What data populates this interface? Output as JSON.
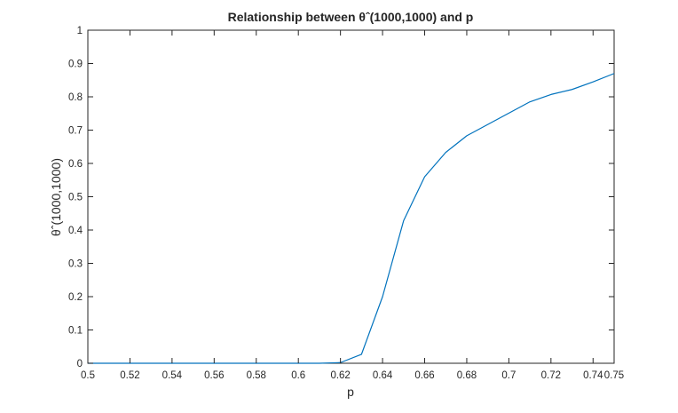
{
  "chart_data": {
    "type": "line",
    "title": "Relationship between θˆ(1000,1000) and p",
    "xlabel": "p",
    "ylabel": "θˆ(1000,1000)",
    "xlim": [
      0.5,
      0.75
    ],
    "ylim": [
      0,
      1
    ],
    "xticks": [
      0.5,
      0.52,
      0.54,
      0.56,
      0.58,
      0.6,
      0.62,
      0.64,
      0.66,
      0.68,
      0.7,
      0.72,
      0.74,
      0.75
    ],
    "xtick_labels": [
      "0.5",
      "0.52",
      "0.54",
      "0.56",
      "0.58",
      "0.6",
      "0.62",
      "0.64",
      "0.66",
      "0.68",
      "0.7",
      "0.72",
      "0.74",
      "0.75"
    ],
    "yticks": [
      0,
      0.1,
      0.2,
      0.3,
      0.4,
      0.5,
      0.6,
      0.7,
      0.8,
      0.9,
      1
    ],
    "ytick_labels": [
      "0",
      "0.1",
      "0.2",
      "0.3",
      "0.4",
      "0.5",
      "0.6",
      "0.7",
      "0.8",
      "0.9",
      "1"
    ],
    "grid": false,
    "series": [
      {
        "color": "#0072bd",
        "x": [
          0.5,
          0.51,
          0.52,
          0.53,
          0.54,
          0.55,
          0.56,
          0.57,
          0.58,
          0.59,
          0.6,
          0.61,
          0.62,
          0.63,
          0.64,
          0.65,
          0.66,
          0.67,
          0.68,
          0.69,
          0.7,
          0.71,
          0.72,
          0.73,
          0.74,
          0.75
        ],
        "y": [
          0,
          0,
          0,
          0,
          0,
          0,
          0,
          0,
          0,
          0,
          0,
          0,
          0.002,
          0.027,
          0.2,
          0.428,
          0.56,
          0.633,
          0.683,
          0.717,
          0.751,
          0.785,
          0.807,
          0.822,
          0.845,
          0.87
        ]
      }
    ]
  }
}
